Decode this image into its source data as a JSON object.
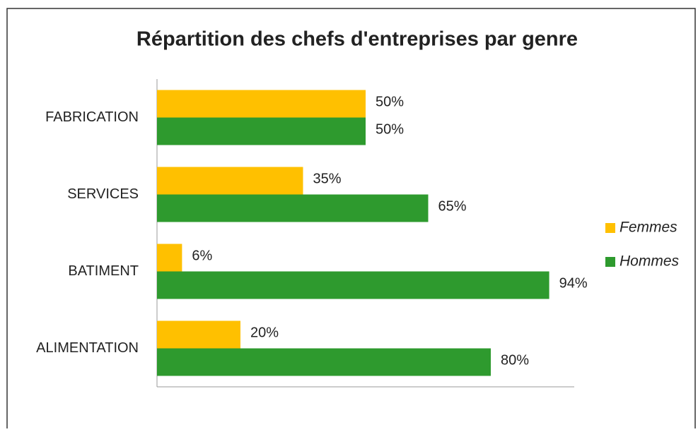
{
  "chart_data": {
    "type": "barh",
    "title": "Répartition des chefs d'entreprises par genre",
    "categories": [
      "FABRICATION",
      "SERVICES",
      "BATIMENT",
      "ALIMENTATION"
    ],
    "series": [
      {
        "name": "Femmes",
        "color": "#FFC000",
        "values": [
          50,
          35,
          6,
          20
        ],
        "value_labels": [
          "50%",
          "35%",
          "6%",
          "20%"
        ]
      },
      {
        "name": "Hommes",
        "color": "#2E9A2E",
        "values": [
          50,
          65,
          94,
          80
        ],
        "value_labels": [
          "50%",
          "65%",
          "94%",
          "80%"
        ]
      }
    ],
    "xlim": [
      0,
      100
    ],
    "legend": "right"
  }
}
